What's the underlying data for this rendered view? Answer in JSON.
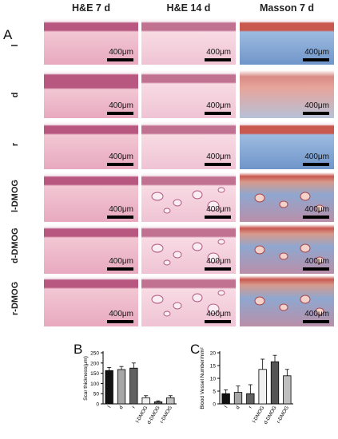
{
  "figure": {
    "panel_a_label": "A",
    "panel_b_label": "B",
    "panel_c_label": "C",
    "column_headers": [
      "H&E 7 d",
      "H&E 14 d",
      "Masson 7 d"
    ],
    "row_labels": [
      "l",
      "d",
      "r",
      "l-DMOG",
      "d-DMOG",
      "r-DMOG"
    ],
    "scale_bar_text": "400μm"
  },
  "chart_data": [
    {
      "type": "bar",
      "panel": "B",
      "title": "",
      "xlabel": "",
      "ylabel": "Scar thickness(μm)",
      "ylim": [
        0,
        250
      ],
      "yticks": [
        0,
        50,
        100,
        150,
        200,
        250
      ],
      "categories": [
        "l",
        "d",
        "r",
        "l-DMOG",
        "d-DMOG",
        "r-DMOG"
      ],
      "values": [
        163,
        168,
        175,
        30,
        10,
        30
      ],
      "errors": [
        15,
        15,
        25,
        10,
        5,
        10
      ],
      "bar_colors": [
        "#111111",
        "#a6a6a6",
        "#606060",
        "#f0f0f0",
        "#555555",
        "#bfbfbf"
      ],
      "grid": false
    },
    {
      "type": "bar",
      "panel": "C",
      "title": "",
      "xlabel": "",
      "ylabel": "Blood Vessel Number/mm²",
      "ylim": [
        0,
        20
      ],
      "yticks": [
        0,
        5,
        10,
        15,
        20
      ],
      "categories": [
        "l",
        "d",
        "r",
        "l-DMOG",
        "d-DMOG",
        "r-DMOG"
      ],
      "values": [
        4,
        4.5,
        4,
        13.5,
        16.5,
        11
      ],
      "errors": [
        1.5,
        2.5,
        3.5,
        4,
        2.5,
        2.5
      ],
      "bar_colors": [
        "#111111",
        "#a6a6a6",
        "#606060",
        "#f0f0f0",
        "#555555",
        "#bfbfbf"
      ],
      "grid": false
    }
  ]
}
